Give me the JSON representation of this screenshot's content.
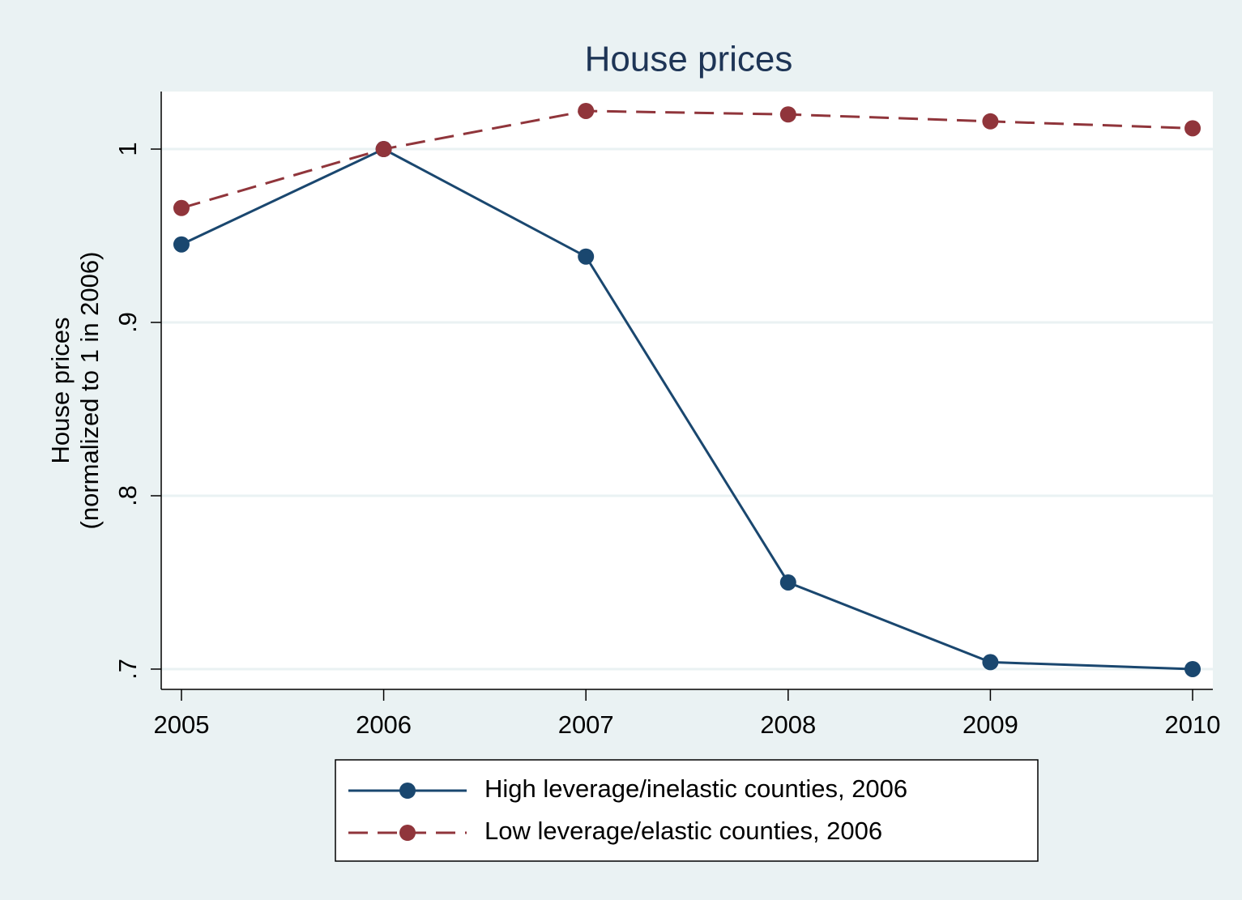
{
  "chart_data": {
    "type": "line",
    "title": "House prices",
    "y_label": [
      "House prices",
      "(normalized to 1 in 2006)"
    ],
    "x": [
      2005,
      2006,
      2007,
      2008,
      2009,
      2010
    ],
    "series": [
      {
        "name": "High leverage/inelastic counties, 2006",
        "color": "#1a476f",
        "line_style": "solid",
        "values": [
          0.945,
          1.0,
          0.938,
          0.75,
          0.704,
          0.7
        ]
      },
      {
        "name": "Low leverage/elastic counties, 2006",
        "color": "#90353b",
        "line_style": "dashed",
        "values": [
          0.966,
          1.0,
          1.022,
          1.02,
          1.016,
          1.012
        ]
      }
    ],
    "xlim": [
      2004.9,
      2010.1
    ],
    "xticks": [
      2005,
      2006,
      2007,
      2008,
      2009,
      2010
    ],
    "ylim": [
      0.6883,
      1.0332
    ],
    "yticks": [
      {
        "value": 0.7,
        "label": ".7"
      },
      {
        "value": 0.8,
        "label": ".8"
      },
      {
        "value": 0.9,
        "label": ".9"
      },
      1
    ],
    "grid": true,
    "legend": "bottom"
  }
}
